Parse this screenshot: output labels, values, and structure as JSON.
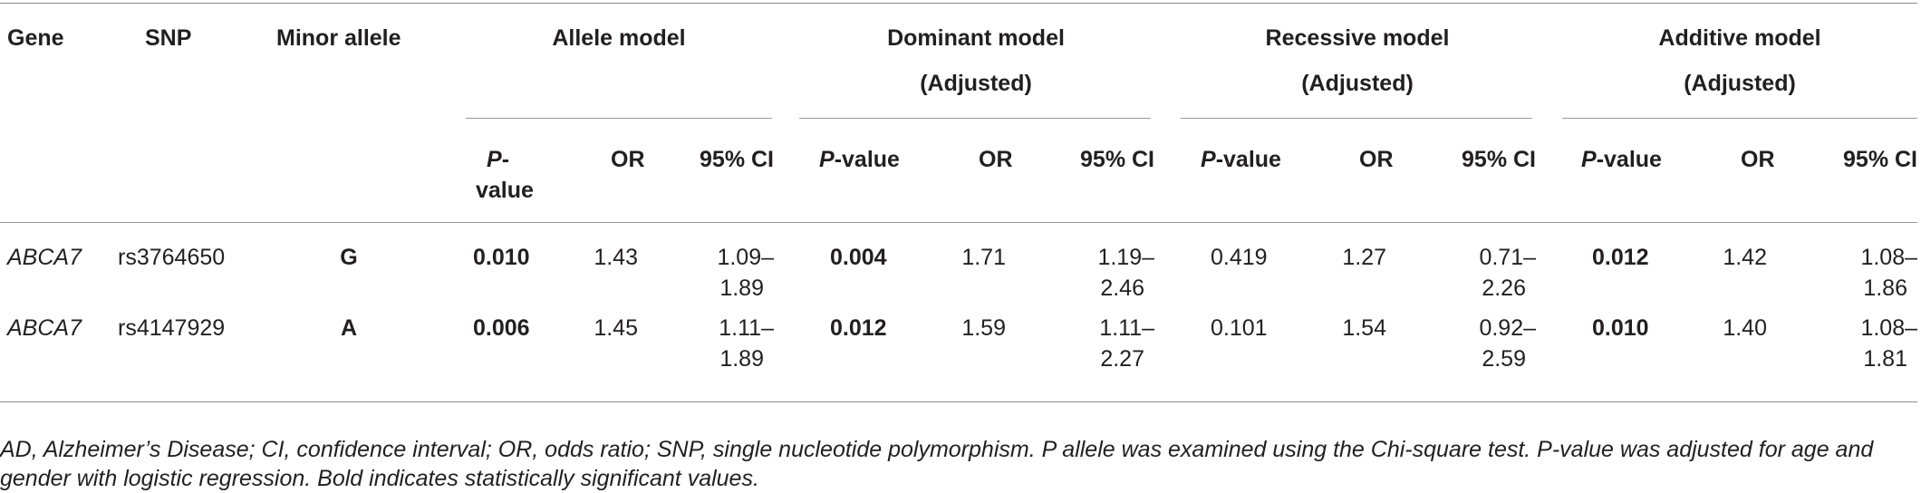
{
  "header": {
    "gene": "Gene",
    "snp": "SNP",
    "minor_allele": "Minor allele",
    "groups": [
      {
        "line1": "Allele model",
        "line2": ""
      },
      {
        "line1": "Dominant model",
        "line2": "(Adjusted)"
      },
      {
        "line1": "Recessive model",
        "line2": "(Adjusted)"
      },
      {
        "line1": "Additive model",
        "line2": "(Adjusted)"
      }
    ],
    "sub": {
      "p_italic": "P",
      "p_suffix": "-value",
      "allele_p_line1": "P-",
      "allele_p_line2": "value",
      "or": "OR",
      "ci": "95% CI"
    }
  },
  "rows": [
    {
      "gene": "ABCA7",
      "snp": "rs3764650",
      "minor_allele": "G",
      "models": [
        {
          "p": "0.010",
          "or": "1.43",
          "ci1": "1.09–",
          "ci2": "1.89"
        },
        {
          "p": "0.004",
          "or": "1.71",
          "ci1": "1.19–",
          "ci2": "2.46"
        },
        {
          "p": "0.419",
          "or": "1.27",
          "ci1": "0.71–",
          "ci2": "2.26"
        },
        {
          "p": "0.012",
          "or": "1.42",
          "ci1": "1.08–",
          "ci2": "1.86"
        }
      ]
    },
    {
      "gene": "ABCA7",
      "snp": "rs4147929",
      "minor_allele": "A",
      "models": [
        {
          "p": "0.006",
          "or": "1.45",
          "ci1": "1.11–",
          "ci2": "1.89"
        },
        {
          "p": "0.012",
          "or": "1.59",
          "ci1": "1.11–",
          "ci2": "2.27"
        },
        {
          "p": "0.101",
          "or": "1.54",
          "ci1": "0.92–",
          "ci2": "2.59"
        },
        {
          "p": "0.010",
          "or": "1.40",
          "ci1": "1.08–",
          "ci2": "1.81"
        }
      ]
    }
  ],
  "footnote": "AD, Alzheimer’s Disease; CI, confidence interval; OR, odds ratio; SNP, single nucleotide polymorphism. P allele was examined using the Chi-square test. P-value was adjusted for age and gender with logistic regression. Bold indicates statistically significant values."
}
